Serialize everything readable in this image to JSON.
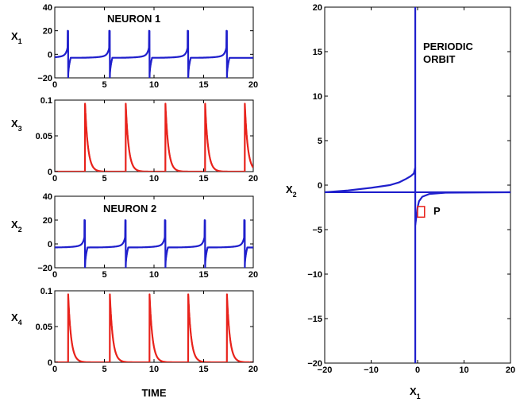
{
  "colors": {
    "blue": "#1f1fcc",
    "red": "#e8221b",
    "frame": "#000000"
  },
  "chart_data": [
    {
      "type": "line",
      "ylabel": "X",
      "ylabel_sub": "1",
      "annotation": "NEURON 1",
      "xlim": [
        0,
        20
      ],
      "ylim": [
        -20,
        40
      ],
      "xticks": [
        "0",
        "5",
        "10",
        "15",
        "20"
      ],
      "yticks": [
        "−20",
        "0",
        "20",
        "40"
      ],
      "series": [
        {
          "color": "blue",
          "kind": "voltage",
          "base": -3,
          "spikes": [
            1.35,
            5.55,
            9.55,
            13.45,
            17.35
          ],
          "spike_peak": 20,
          "spike_min": -20
        }
      ]
    },
    {
      "type": "line",
      "ylabel": "X",
      "ylabel_sub": "3",
      "xlim": [
        0,
        20
      ],
      "ylim": [
        0,
        0.1
      ],
      "xticks": [
        "0",
        "5",
        "10",
        "15",
        "20"
      ],
      "yticks": [
        "0",
        "0.05",
        "0.1"
      ],
      "series": [
        {
          "color": "red",
          "kind": "decay",
          "spikes": [
            3.05,
            7.15,
            11.15,
            15.15,
            19.15
          ],
          "spike_peak": 0.095
        }
      ]
    },
    {
      "type": "line",
      "ylabel": "X",
      "ylabel_sub": "2",
      "annotation": "NEURON 2",
      "xlim": [
        0,
        20
      ],
      "ylim": [
        -20,
        40
      ],
      "xticks": [
        "0",
        "5",
        "10",
        "15",
        "20"
      ],
      "yticks": [
        "−20",
        "0",
        "20",
        "40"
      ],
      "series": [
        {
          "color": "blue",
          "kind": "voltage",
          "base": -3,
          "spikes": [
            3.05,
            7.15,
            11.15,
            15.15,
            19.15
          ],
          "spike_peak": 20,
          "spike_min": -20
        }
      ]
    },
    {
      "type": "line",
      "ylabel": "X",
      "ylabel_sub": "4",
      "xlabel": "TIME",
      "xlim": [
        0,
        20
      ],
      "ylim": [
        0,
        0.1
      ],
      "xticks": [
        "0",
        "5",
        "10",
        "15",
        "20"
      ],
      "yticks": [
        "0",
        "0.05",
        "0.1"
      ],
      "series": [
        {
          "color": "red",
          "kind": "decay",
          "spikes": [
            1.35,
            5.55,
            9.55,
            13.45,
            17.35
          ],
          "spike_peak": 0.095
        }
      ]
    },
    {
      "type": "line",
      "xlabel": "X",
      "xlabel_sub": "1",
      "ylabel": "X",
      "ylabel_sub": "2",
      "annotation": "PERIODIC\nORBIT",
      "marker_label": "P",
      "xlim": [
        -20,
        20
      ],
      "ylim": [
        -20,
        20
      ],
      "xticks": [
        "−20",
        "−10",
        "0",
        "10",
        "20"
      ],
      "yticks": [
        "−20",
        "−15",
        "−10",
        "−5",
        "0",
        "5",
        "10",
        "15",
        "20"
      ],
      "orbit": {
        "vertical_x": -0.5,
        "horizontal_y": -0.8,
        "upper_branch": [
          [
            -20,
            -0.8
          ],
          [
            -15,
            -0.6
          ],
          [
            -10,
            -0.3
          ],
          [
            -6,
            0.0
          ],
          [
            -4,
            0.3
          ],
          [
            -2.5,
            0.7
          ],
          [
            -1.5,
            1.0
          ],
          [
            -0.8,
            1.3
          ],
          [
            -0.5,
            2.0
          ]
        ],
        "lower_branch": [
          [
            -0.5,
            -4.5
          ],
          [
            0.0,
            -2.5
          ],
          [
            0.3,
            -1.8
          ],
          [
            1.0,
            -1.3
          ],
          [
            2.5,
            -1.0
          ],
          [
            6,
            -0.85
          ],
          [
            20,
            -0.8
          ]
        ],
        "marker_box": {
          "x": [
            0.0,
            1.5
          ],
          "y": [
            -2.4,
            -3.6
          ],
          "color": "red"
        }
      }
    }
  ]
}
